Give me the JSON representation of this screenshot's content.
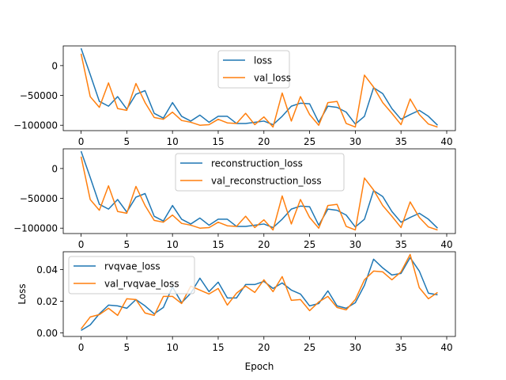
{
  "chart_data": [
    {
      "type": "line",
      "ylabel": "",
      "xlabel": "",
      "xlim": [
        -1.95,
        40.95
      ],
      "ylim": [
        -109000,
        33000
      ],
      "xticks": [
        0,
        5,
        10,
        15,
        20,
        25,
        30,
        35,
        40
      ],
      "yticks": [
        0,
        -50000,
        -100000
      ],
      "ytick_labels": [
        "0",
        "−50000",
        "−100000"
      ],
      "legend": "top-center",
      "x": [
        0,
        1,
        2,
        3,
        4,
        5,
        6,
        7,
        8,
        9,
        10,
        11,
        12,
        13,
        14,
        15,
        16,
        17,
        18,
        19,
        20,
        21,
        22,
        23,
        24,
        25,
        26,
        27,
        28,
        29,
        30,
        31,
        32,
        33,
        34,
        35,
        36,
        37,
        38,
        39
      ],
      "series": [
        {
          "name": "loss",
          "color": "#1f77b4",
          "values": [
            29000,
            -15000,
            -60000,
            -68000,
            -52000,
            -73000,
            -48000,
            -42000,
            -80000,
            -88000,
            -62000,
            -85000,
            -93000,
            -83000,
            -95000,
            -85000,
            -85000,
            -97000,
            -97000,
            -95000,
            -93000,
            -99000,
            -85000,
            -68000,
            -63000,
            -64000,
            -95000,
            -68000,
            -70000,
            -78000,
            -98000,
            -85000,
            -37000,
            -47000,
            -72000,
            -90000,
            -82000,
            -75000,
            -85000,
            -100000
          ]
        },
        {
          "name": "val_loss",
          "color": "#ff7f0e",
          "values": [
            20000,
            -52000,
            -70000,
            -29000,
            -72000,
            -75000,
            -30000,
            -62000,
            -87000,
            -90000,
            -78000,
            -92000,
            -95000,
            -100000,
            -99000,
            -90000,
            -96000,
            -97000,
            -80000,
            -99000,
            -86000,
            -103000,
            -46000,
            -93000,
            -52000,
            -82000,
            -100000,
            -62000,
            -60000,
            -97000,
            -103000,
            -16000,
            -36000,
            -62000,
            -80000,
            -99000,
            -56000,
            -82000,
            -98000,
            -103000
          ]
        }
      ]
    },
    {
      "type": "line",
      "ylabel": "",
      "xlabel": "",
      "xlim": [
        -1.95,
        40.95
      ],
      "ylim": [
        -109000,
        33000
      ],
      "xticks": [
        0,
        5,
        10,
        15,
        20,
        25,
        30,
        35,
        40
      ],
      "yticks": [
        0,
        -50000,
        -100000
      ],
      "ytick_labels": [
        "0",
        "−50000",
        "−100000"
      ],
      "legend": "top-center",
      "x": [
        0,
        1,
        2,
        3,
        4,
        5,
        6,
        7,
        8,
        9,
        10,
        11,
        12,
        13,
        14,
        15,
        16,
        17,
        18,
        19,
        20,
        21,
        22,
        23,
        24,
        25,
        26,
        27,
        28,
        29,
        30,
        31,
        32,
        33,
        34,
        35,
        36,
        37,
        38,
        39
      ],
      "series": [
        {
          "name": "reconstruction_loss",
          "color": "#1f77b4",
          "values": [
            29000,
            -15000,
            -60000,
            -68000,
            -52000,
            -73000,
            -48000,
            -42000,
            -80000,
            -88000,
            -62000,
            -85000,
            -93000,
            -83000,
            -95000,
            -85000,
            -85000,
            -97000,
            -97000,
            -95000,
            -93000,
            -99000,
            -85000,
            -68000,
            -63000,
            -64000,
            -95000,
            -68000,
            -70000,
            -78000,
            -98000,
            -85000,
            -37000,
            -47000,
            -72000,
            -90000,
            -82000,
            -75000,
            -85000,
            -100000
          ]
        },
        {
          "name": "val_reconstruction_loss",
          "color": "#ff7f0e",
          "values": [
            20000,
            -52000,
            -70000,
            -29000,
            -72000,
            -75000,
            -30000,
            -62000,
            -87000,
            -90000,
            -78000,
            -92000,
            -95000,
            -100000,
            -99000,
            -90000,
            -96000,
            -97000,
            -80000,
            -99000,
            -86000,
            -103000,
            -46000,
            -93000,
            -52000,
            -82000,
            -100000,
            -62000,
            -60000,
            -97000,
            -103000,
            -16000,
            -36000,
            -62000,
            -80000,
            -99000,
            -56000,
            -82000,
            -98000,
            -103000
          ]
        }
      ]
    },
    {
      "type": "line",
      "ylabel": "Loss",
      "xlabel": "Epoch",
      "xlim": [
        -1.95,
        40.95
      ],
      "ylim": [
        -0.0023,
        0.0512
      ],
      "xticks": [
        0,
        5,
        10,
        15,
        20,
        25,
        30,
        35,
        40
      ],
      "yticks": [
        0.0,
        0.02,
        0.04
      ],
      "ytick_labels": [
        "0.00",
        "0.02",
        "0.04"
      ],
      "legend": "top-left",
      "x": [
        0,
        1,
        2,
        3,
        4,
        5,
        6,
        7,
        8,
        9,
        10,
        11,
        12,
        13,
        14,
        15,
        16,
        17,
        18,
        19,
        20,
        21,
        22,
        23,
        24,
        25,
        26,
        27,
        28,
        29,
        30,
        31,
        32,
        33,
        34,
        35,
        36,
        37,
        38,
        39
      ],
      "series": [
        {
          "name": "rvqvae_loss",
          "color": "#1f77b4",
          "values": [
            0.0015,
            0.005,
            0.012,
            0.0175,
            0.017,
            0.0155,
            0.021,
            0.017,
            0.012,
            0.016,
            0.029,
            0.019,
            0.025,
            0.0345,
            0.026,
            0.032,
            0.022,
            0.022,
            0.0305,
            0.0305,
            0.0325,
            0.028,
            0.0315,
            0.027,
            0.0245,
            0.017,
            0.0185,
            0.0265,
            0.017,
            0.0155,
            0.019,
            0.03,
            0.0465,
            0.041,
            0.0365,
            0.0375,
            0.0475,
            0.039,
            0.025,
            0.024
          ]
        },
        {
          "name": "val_rvqvae_loss",
          "color": "#ff7f0e",
          "values": [
            0.0025,
            0.01,
            0.0115,
            0.0155,
            0.011,
            0.0215,
            0.021,
            0.0125,
            0.011,
            0.023,
            0.023,
            0.0185,
            0.0295,
            0.027,
            0.0245,
            0.028,
            0.0175,
            0.025,
            0.0295,
            0.0255,
            0.0335,
            0.026,
            0.0355,
            0.0205,
            0.021,
            0.014,
            0.0195,
            0.023,
            0.016,
            0.0145,
            0.021,
            0.0335,
            0.039,
            0.0385,
            0.0335,
            0.0385,
            0.0495,
            0.0285,
            0.0215,
            0.0255
          ]
        }
      ]
    }
  ]
}
